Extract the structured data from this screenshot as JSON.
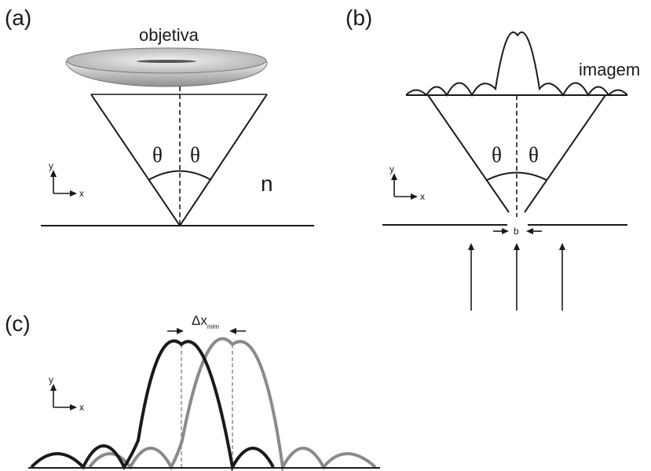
{
  "panels": {
    "a": {
      "label": "(a)",
      "lens_label": "objetiva",
      "theta_left": "θ",
      "theta_right": "θ",
      "medium_label": "n",
      "axis_y": "y",
      "axis_x": "x"
    },
    "b": {
      "label": "(b)",
      "image_label": "imagem",
      "theta_left": "θ",
      "theta_right": "θ",
      "slit_label": "b",
      "axis_y": "y",
      "axis_x": "x"
    },
    "c": {
      "label": "(c)",
      "delta_symbol": "Δx",
      "delta_subscript": "mim",
      "axis_y": "y",
      "axis_x": "x"
    }
  },
  "colors": {
    "ink": "#1a1a1a",
    "second_curve": "#8a8a8a",
    "lens_light": "#e4e4e4",
    "lens_dark": "#9a9a9a"
  }
}
